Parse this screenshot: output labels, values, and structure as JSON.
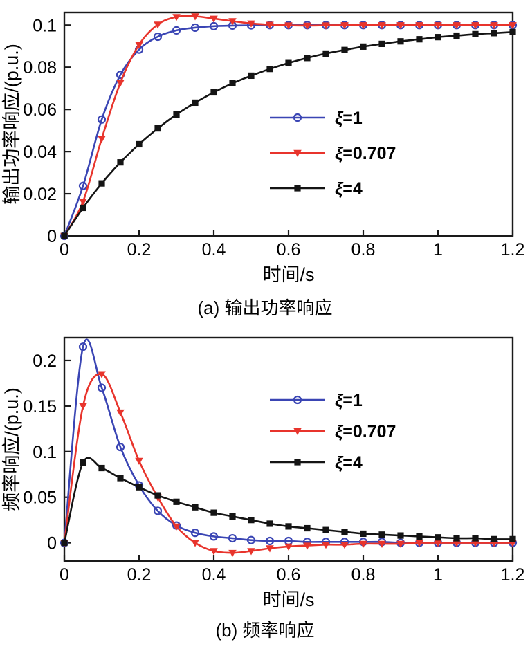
{
  "page": {
    "background": "#ffffff"
  },
  "colors": {
    "axis": "#1a1a1a",
    "text": "#000000",
    "blue": "#3a45b4",
    "red": "#e8342c",
    "black": "#141414"
  },
  "chart_data": [
    {
      "type": "line",
      "panel": "a",
      "caption": "(a) 输出功率响应",
      "xlabel": "时间/s",
      "ylabel": "输出功率响应/(p.u.)",
      "xlim": [
        0,
        1.2
      ],
      "ylim": [
        0,
        0.106
      ],
      "xticks": [
        0,
        0.2,
        0.4,
        0.6,
        0.8,
        1,
        1.2
      ],
      "xtick_labels": [
        "0",
        "0.2",
        "0.4",
        "0.6",
        "0.8",
        "1",
        "1.2"
      ],
      "yticks": [
        0,
        0.02,
        0.04,
        0.06,
        0.08,
        0.1
      ],
      "ytick_labels": [
        "0",
        "0.02",
        "0.04",
        "0.06",
        "0.08",
        "0.1"
      ],
      "grid": false,
      "legend_position": "center-right",
      "x": [
        0,
        0.05,
        0.1,
        0.15,
        0.2,
        0.25,
        0.3,
        0.35,
        0.4,
        0.45,
        0.5,
        0.55,
        0.6,
        0.65,
        0.7,
        0.75,
        0.8,
        0.85,
        0.9,
        0.95,
        1,
        1.05,
        1.1,
        1.15,
        1.2
      ],
      "series": [
        {
          "name": "ξ=1",
          "color": "#3a45b4",
          "marker": "circle",
          "values": [
            0,
            0.0237,
            0.0552,
            0.0764,
            0.0884,
            0.0945,
            0.0975,
            0.0988,
            0.0995,
            0.0998,
            0.0999,
            0.1,
            0.1,
            0.1,
            0.1,
            0.1,
            0.1,
            0.1,
            0.1,
            0.1,
            0.1,
            0.1,
            0.1,
            0.1,
            0.1
          ]
        },
        {
          "name": "ξ=0.707",
          "color": "#e8342c",
          "marker": "triangle-down",
          "values": [
            0,
            0.0163,
            0.0461,
            0.0727,
            0.0907,
            0.1003,
            0.1039,
            0.1042,
            0.1031,
            0.1019,
            0.1008,
            0.1002,
            0.0999,
            0.0998,
            0.0999,
            0.1,
            0.1,
            0.1,
            0.1,
            0.1,
            0.1,
            0.1,
            0.1,
            0.1,
            0.1
          ]
        },
        {
          "name": "ξ=4",
          "color": "#141414",
          "marker": "square",
          "values": [
            0,
            0.0133,
            0.0249,
            0.0349,
            0.0435,
            0.051,
            0.0576,
            0.0632,
            0.0681,
            0.0724,
            0.076,
            0.0792,
            0.082,
            0.0844,
            0.0865,
            0.0882,
            0.0898,
            0.0911,
            0.0923,
            0.0933,
            0.0943,
            0.095,
            0.0957,
            0.0962,
            0.0967
          ]
        }
      ]
    },
    {
      "type": "line",
      "panel": "b",
      "caption": "(b) 频率响应",
      "xlabel": "时间/s",
      "ylabel": "频率响应/(p.u.)",
      "xlim": [
        0,
        1.2
      ],
      "ylim": [
        -0.02,
        0.225
      ],
      "xticks": [
        0,
        0.2,
        0.4,
        0.6,
        0.8,
        1,
        1.2
      ],
      "xtick_labels": [
        "0",
        "0.2",
        "0.4",
        "0.6",
        "0.8",
        "1",
        "1.2"
      ],
      "yticks": [
        0,
        0.05,
        0.1,
        0.15,
        0.2
      ],
      "ytick_labels": [
        "0",
        "0.05",
        "0.1",
        "0.15",
        "0.2"
      ],
      "grid": false,
      "legend_position": "center-right",
      "x": [
        0,
        0.05,
        0.1,
        0.15,
        0.2,
        0.25,
        0.3,
        0.35,
        0.4,
        0.45,
        0.5,
        0.55,
        0.6,
        0.65,
        0.7,
        0.75,
        0.8,
        0.85,
        0.9,
        0.95,
        1,
        1.05,
        1.1,
        1.15,
        1.2
      ],
      "series": [
        {
          "name": "ξ=1",
          "color": "#3a45b4",
          "marker": "circle",
          "values": [
            0,
            0.215,
            0.17,
            0.105,
            0.063,
            0.035,
            0.019,
            0.011,
            0.007,
            0.005,
            0.003,
            0.002,
            0.002,
            0.001,
            0.001,
            0.001,
            0.001,
            0.001,
            0,
            0,
            0,
            0,
            0,
            0,
            0
          ]
        },
        {
          "name": "ξ=0.707",
          "color": "#e8342c",
          "marker": "triangle-down",
          "values": [
            0,
            0.15,
            0.185,
            0.143,
            0.09,
            0.05,
            0.018,
            0,
            -0.009,
            -0.011,
            -0.009,
            -0.006,
            -0.004,
            -0.003,
            -0.002,
            -0.002,
            -0.001,
            -0.001,
            -0.001,
            0,
            0,
            0,
            0,
            0,
            0
          ]
        },
        {
          "name": "ξ=4",
          "color": "#141414",
          "marker": "square",
          "values": [
            0,
            0.088,
            0.082,
            0.071,
            0.061,
            0.052,
            0.045,
            0.039,
            0.033,
            0.029,
            0.025,
            0.021,
            0.018,
            0.016,
            0.014,
            0.012,
            0.01,
            0.009,
            0.008,
            0.007,
            0.006,
            0.005,
            0.005,
            0.004,
            0.004
          ]
        }
      ]
    }
  ]
}
